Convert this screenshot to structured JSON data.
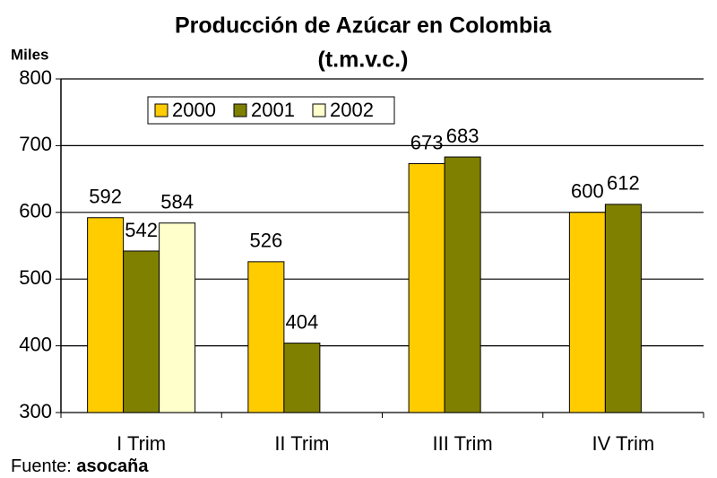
{
  "chart_data": {
    "type": "bar",
    "title": "Producción de Azúcar en Colombia",
    "subtitle": "(t.m.v.c.)",
    "y_label": "Miles",
    "source_label": "Fuente:",
    "source": "asocaña",
    "categories": [
      "I Trim",
      "II Trim",
      "III Trim",
      "IV Trim"
    ],
    "series": [
      {
        "name": "2000",
        "color": "#ffcc00",
        "values": [
          592,
          526,
          673,
          600
        ]
      },
      {
        "name": "2001",
        "color": "#808000",
        "values": [
          542,
          404,
          683,
          612
        ]
      },
      {
        "name": "2002",
        "color": "#ffffcc",
        "values": [
          584,
          null,
          null,
          null
        ]
      }
    ],
    "ylim": [
      300,
      800
    ],
    "yticks": [
      300,
      400,
      500,
      600,
      700,
      800
    ],
    "grid": true,
    "legend": "upper left"
  }
}
